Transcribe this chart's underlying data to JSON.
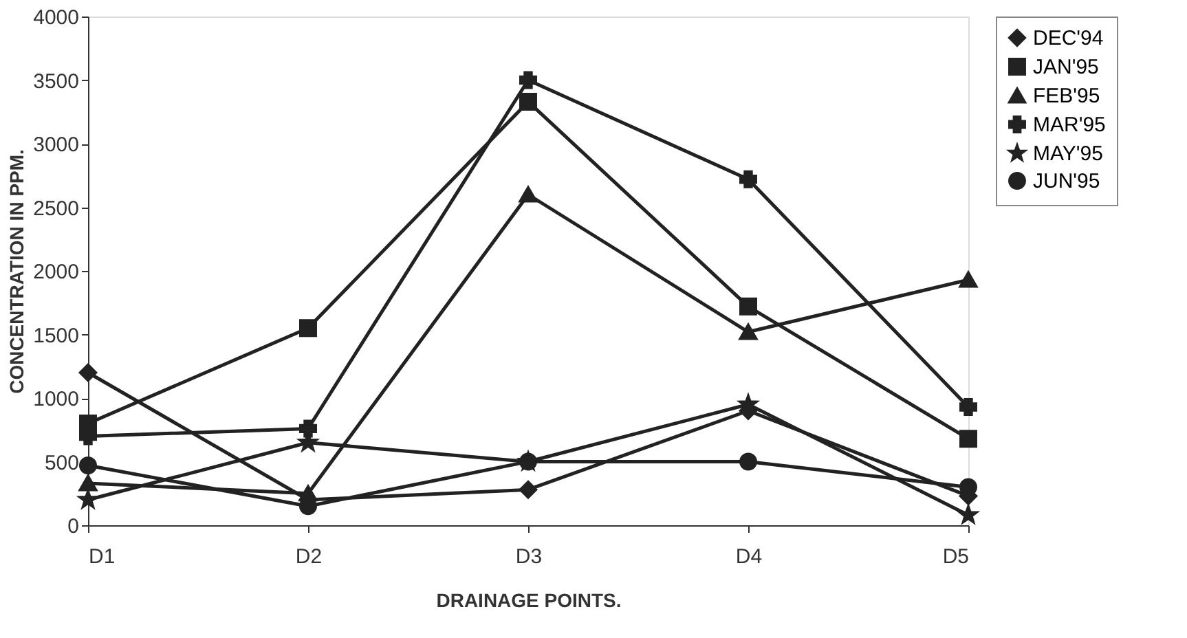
{
  "chart_data": {
    "type": "line",
    "xlabel": "DRAINAGE POINTS.",
    "ylabel": "CONCENTRATION IN PPM.",
    "categories": [
      "D1",
      "D2",
      "D3",
      "D4",
      "D5"
    ],
    "ylim": [
      0,
      4000
    ],
    "yticks": [
      0,
      500,
      1000,
      1500,
      2000,
      2500,
      3000,
      3500,
      4000
    ],
    "grid": false,
    "legend": "right",
    "series": [
      {
        "name": "DEC'94",
        "color": "#222222",
        "marker": "diamond",
        "values": [
          1200,
          200,
          280,
          900,
          230
        ]
      },
      {
        "name": "JAN'95",
        "color": "#222222",
        "marker": "square",
        "values": [
          800,
          1550,
          3330,
          1720,
          680
        ]
      },
      {
        "name": "FEB'95",
        "color": "#222222",
        "marker": "triangle",
        "values": [
          330,
          250,
          2600,
          1520,
          1930
        ]
      },
      {
        "name": "MAR'95",
        "color": "#222222",
        "marker": "cross",
        "values": [
          700,
          760,
          3500,
          2720,
          930
        ]
      },
      {
        "name": "MAY'95",
        "color": "#222222",
        "marker": "star",
        "values": [
          200,
          650,
          500,
          950,
          80
        ]
      },
      {
        "name": "JUN'95",
        "color": "#222222",
        "marker": "circle",
        "values": [
          470,
          150,
          500,
          500,
          300
        ]
      }
    ]
  }
}
